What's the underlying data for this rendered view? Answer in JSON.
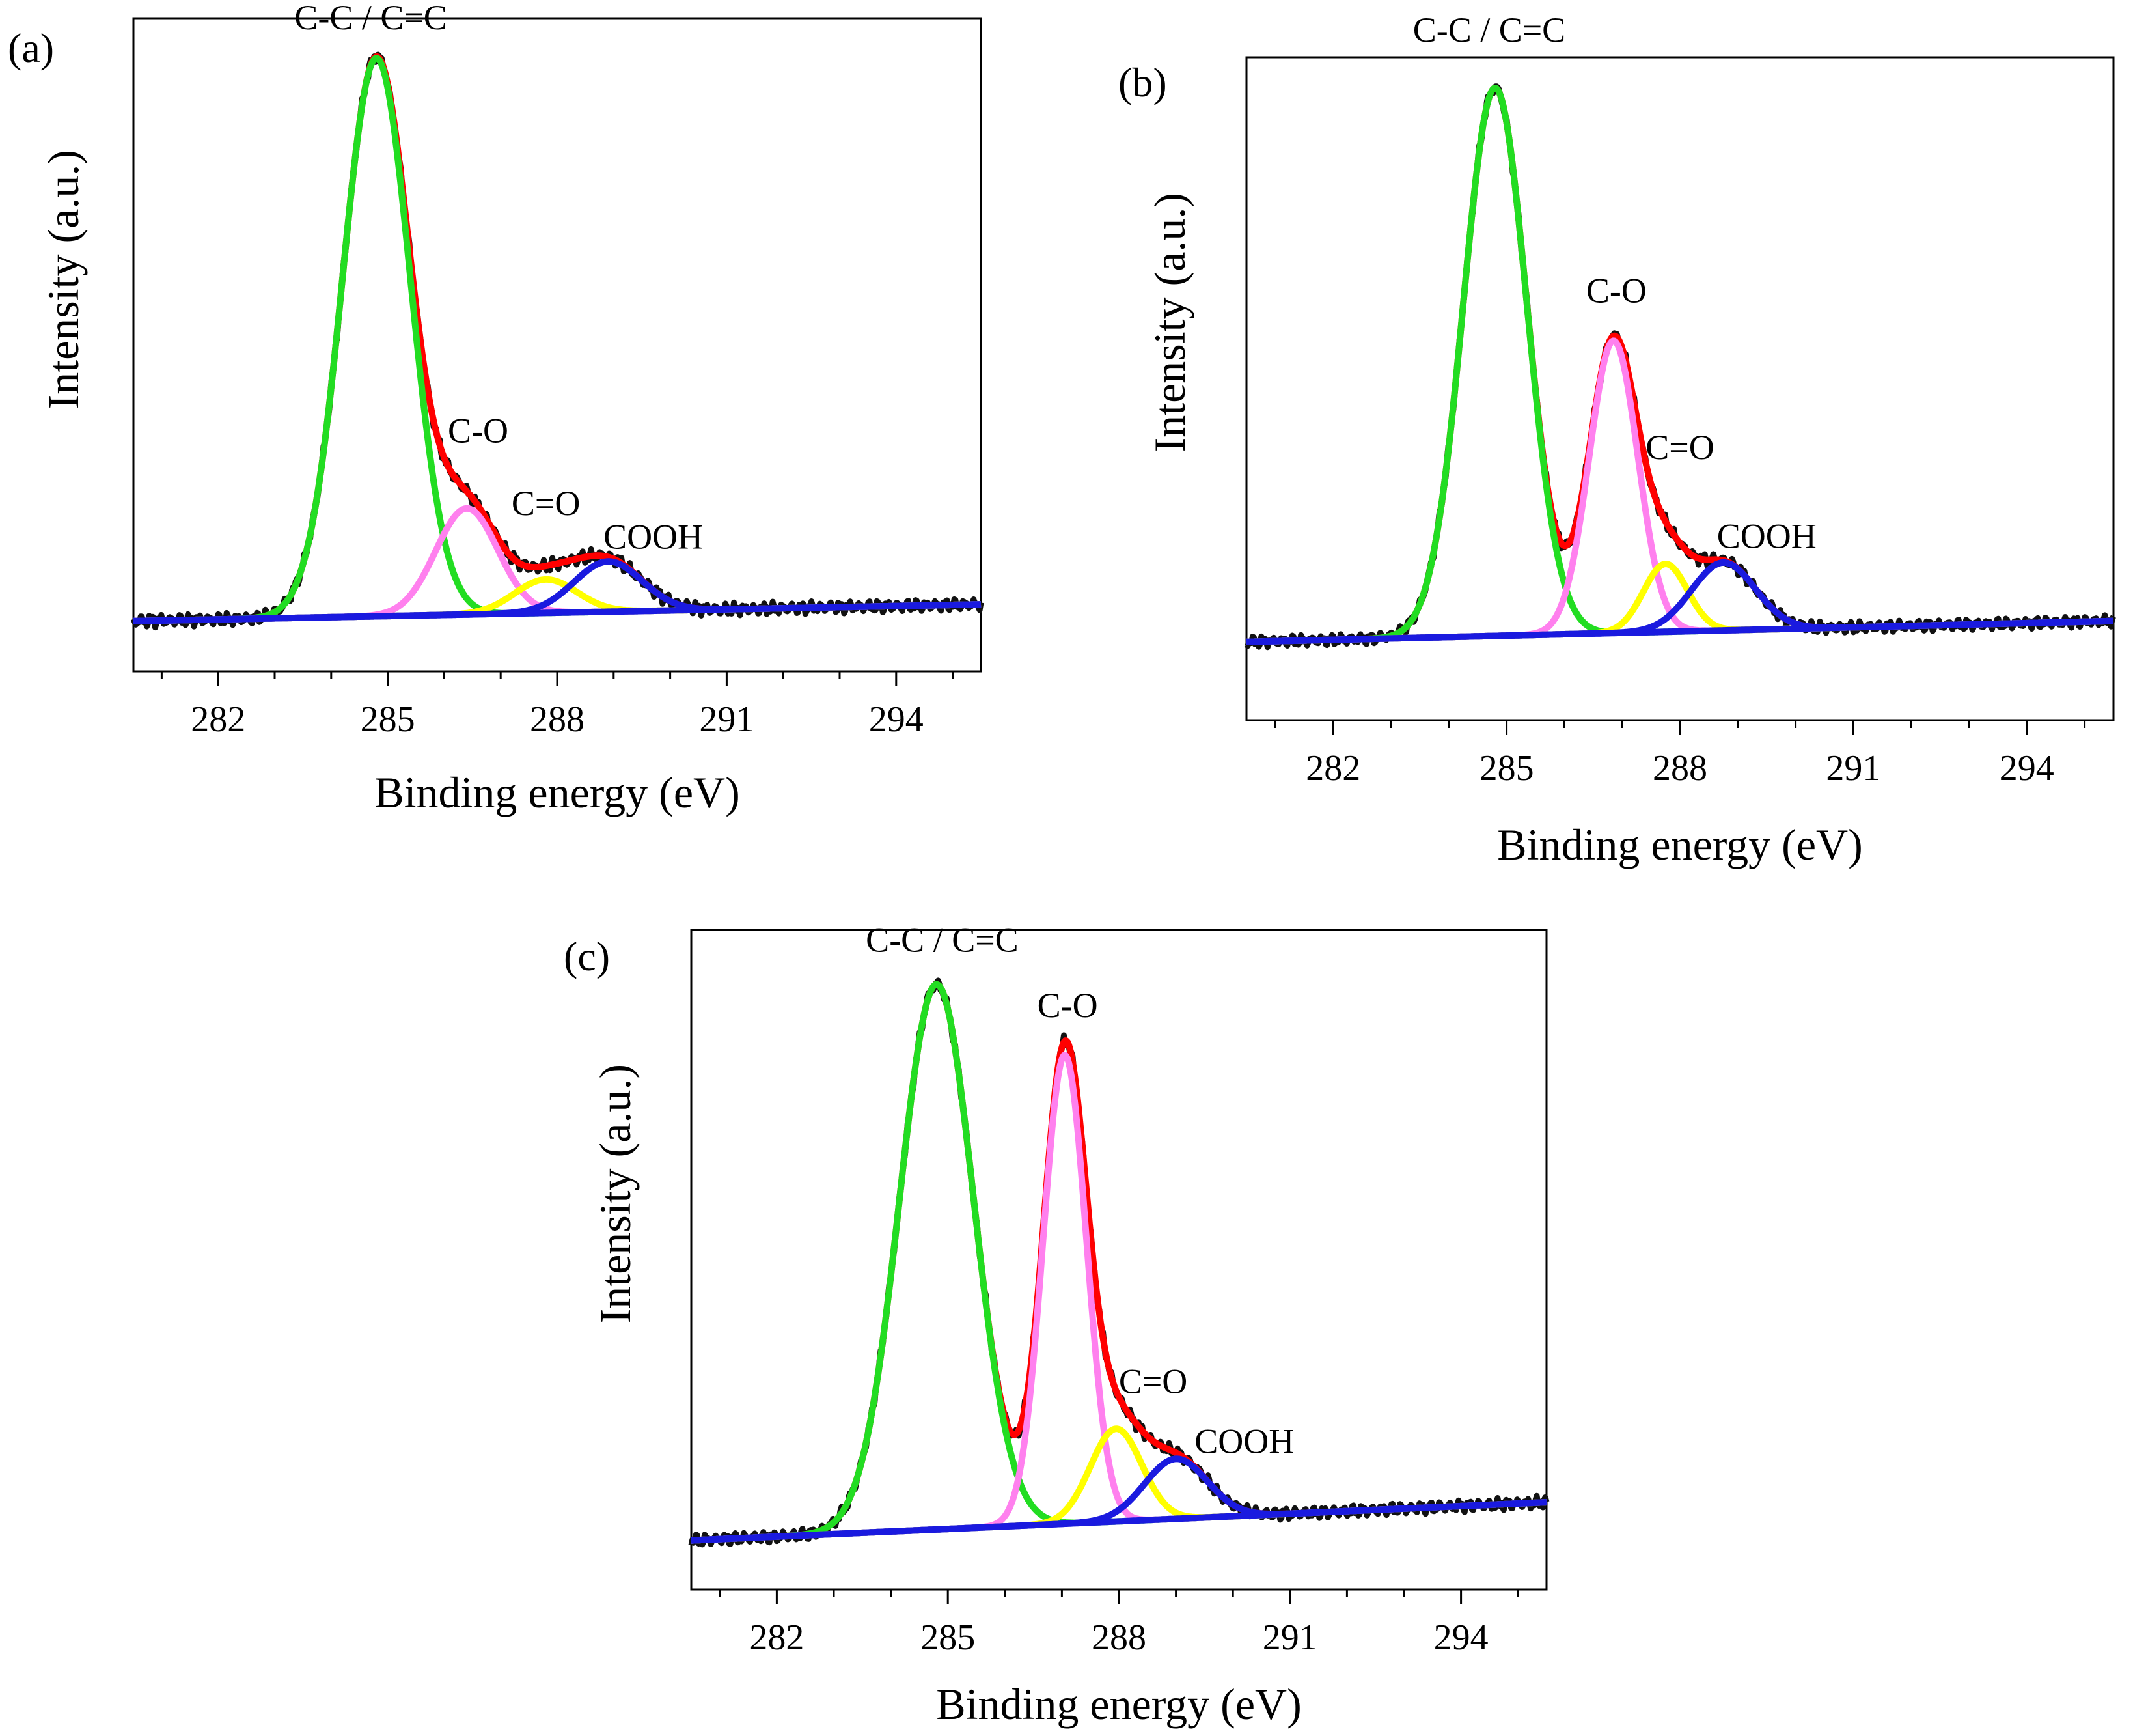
{
  "figure": {
    "description_hidden": false
  },
  "colors": {
    "raw": "#111111",
    "envelope": "#ff0000",
    "cc": "#22dd22",
    "co": "#ff80ee",
    "c_eq_o": "#ffff00",
    "cooh": "#1a1adf",
    "baseline": "#1a1adf",
    "axis": "#000000"
  },
  "chart_data": [
    {
      "type": "line",
      "panel_label": "(a)",
      "xlabel": "Binding energy (eV)",
      "ylabel": "Intensity (a.u.)",
      "xlim": [
        280.5,
        295.5
      ],
      "ylim": [
        -0.09,
        1.08
      ],
      "xticks": [
        282,
        285,
        288,
        291,
        294
      ],
      "xtick_labels": [
        "282",
        "285",
        "288",
        "291",
        "294"
      ],
      "baseline": {
        "start": 0.0,
        "end": 0.03
      },
      "peaks": [
        {
          "name": "C-C / C=C",
          "center": 284.8,
          "height": 1.0,
          "sigma": 0.6,
          "color_key": "cc"
        },
        {
          "name": "C-O",
          "center": 286.4,
          "height": 0.19,
          "sigma": 0.55,
          "color_key": "co"
        },
        {
          "name": "C=O",
          "center": 287.8,
          "height": 0.06,
          "sigma": 0.55,
          "color_key": "c_eq_o"
        },
        {
          "name": "COOH",
          "center": 288.9,
          "height": 0.09,
          "sigma": 0.6,
          "color_key": "cooh"
        }
      ],
      "annotations": [
        {
          "text": "C-C / C=C",
          "x": 284.7,
          "y": 1.06
        },
        {
          "text": "C-O",
          "x": 286.6,
          "y": 0.32
        },
        {
          "text": "C=O",
          "x": 287.8,
          "y": 0.19
        },
        {
          "text": "COOH",
          "x": 289.7,
          "y": 0.13
        }
      ]
    },
    {
      "type": "line",
      "panel_label": "(b)",
      "xlabel": "Binding energy (eV)",
      "ylabel": "Intensity (a.u.)",
      "xlim": [
        280.5,
        295.5
      ],
      "ylim": [
        -0.15,
        1.12
      ],
      "xticks": [
        282,
        285,
        288,
        291,
        294
      ],
      "xtick_labels": [
        "282",
        "285",
        "288",
        "291",
        "294"
      ],
      "baseline": {
        "start": 0.0,
        "end": 0.04
      },
      "peaks": [
        {
          "name": "C-C / C=C",
          "center": 284.8,
          "height": 1.05,
          "sigma": 0.55,
          "color_key": "cc"
        },
        {
          "name": "C-O",
          "center": 286.85,
          "height": 0.56,
          "sigma": 0.42,
          "color_key": "co"
        },
        {
          "name": "C=O",
          "center": 287.75,
          "height": 0.13,
          "sigma": 0.38,
          "color_key": "c_eq_o"
        },
        {
          "name": "COOH",
          "center": 288.75,
          "height": 0.13,
          "sigma": 0.55,
          "color_key": "cooh"
        }
      ],
      "annotations": [
        {
          "text": "C-C / C=C",
          "x": 284.7,
          "y": 1.15
        },
        {
          "text": "C-O",
          "x": 286.9,
          "y": 0.65
        },
        {
          "text": "C=O",
          "x": 288.0,
          "y": 0.35
        },
        {
          "text": "COOH",
          "x": 289.5,
          "y": 0.18
        }
      ]
    },
    {
      "type": "line",
      "panel_label": "(c)",
      "xlabel": "Binding energy (eV)",
      "ylabel": "Intensity (a.u.)",
      "xlim": [
        280.5,
        295.5
      ],
      "ylim": [
        -0.09,
        1.12
      ],
      "xticks": [
        282,
        285,
        288,
        291,
        294
      ],
      "xtick_labels": [
        "282",
        "285",
        "288",
        "291",
        "294"
      ],
      "baseline": {
        "start": 0.0,
        "end": 0.07
      },
      "peaks": [
        {
          "name": "C-C / C=C",
          "center": 284.8,
          "height": 1.0,
          "sigma": 0.65,
          "color_key": "cc"
        },
        {
          "name": "C-O",
          "center": 287.05,
          "height": 0.86,
          "sigma": 0.38,
          "color_key": "co"
        },
        {
          "name": "C=O",
          "center": 287.95,
          "height": 0.17,
          "sigma": 0.45,
          "color_key": "c_eq_o"
        },
        {
          "name": "COOH",
          "center": 289.0,
          "height": 0.11,
          "sigma": 0.55,
          "color_key": "cooh"
        }
      ],
      "annotations": [
        {
          "text": "C-C / C=C",
          "x": 284.9,
          "y": 1.08
        },
        {
          "text": "C-O",
          "x": 287.1,
          "y": 0.96
        },
        {
          "text": "C=O",
          "x": 288.6,
          "y": 0.27
        },
        {
          "text": "COOH",
          "x": 290.2,
          "y": 0.16
        }
      ]
    }
  ]
}
